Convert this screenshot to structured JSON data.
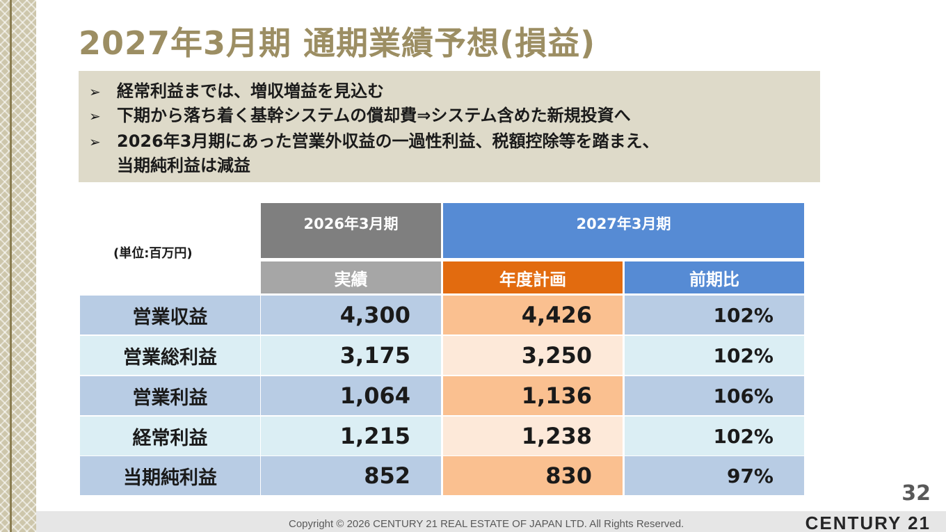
{
  "title": "2027年3月期 通期業績予想(損益)",
  "bullets": [
    {
      "marker": "➢",
      "text": "経常利益までは、増収増益を見込む"
    },
    {
      "marker": "➢",
      "text": "下期から落ち着く基幹システムの償却費⇒システム含めた新規投資へ"
    },
    {
      "marker": "➢",
      "text": "2026年3月期にあった営業外収益の一過性利益、税額控除等を踏まえ、",
      "continuation": "当期純利益は減益"
    }
  ],
  "table": {
    "unit_label": "(単位:百万円)",
    "header_2026": "2026年3月期",
    "header_2027": "2027年3月期",
    "sub_actual": "実績",
    "sub_plan": "年度計画",
    "sub_ratio": "前期比",
    "rows": [
      {
        "label": "営業収益",
        "actual": "4,300",
        "plan": "4,426",
        "ratio": "102%"
      },
      {
        "label": "営業総利益",
        "actual": "3,175",
        "plan": "3,250",
        "ratio": "102%"
      },
      {
        "label": "営業利益",
        "actual": "1,064",
        "plan": "1,136",
        "ratio": "106%"
      },
      {
        "label": "経常利益",
        "actual": "1,215",
        "plan": "1,238",
        "ratio": "102%"
      },
      {
        "label": "当期純利益",
        "actual": "852",
        "plan": "830",
        "ratio": "97%"
      }
    ]
  },
  "page_number": "32",
  "footer": {
    "copyright": "Copyright © 2026 CENTURY 21 REAL ESTATE OF JAPAN LTD. All Rights Reserved.",
    "brand": "CENTURY 21"
  },
  "colors": {
    "title": "#9c8e63",
    "bullet_box": "#dedac9",
    "header_2026": "#7f7f7f",
    "header_2027": "#568bd4",
    "sub_actual": "#a6a6a6",
    "sub_plan": "#e26b0f",
    "row_blue_dark": "#b8cce4",
    "row_blue_light": "#dbeef4",
    "row_orange_dark": "#fac090",
    "row_orange_light": "#fde9d9"
  }
}
